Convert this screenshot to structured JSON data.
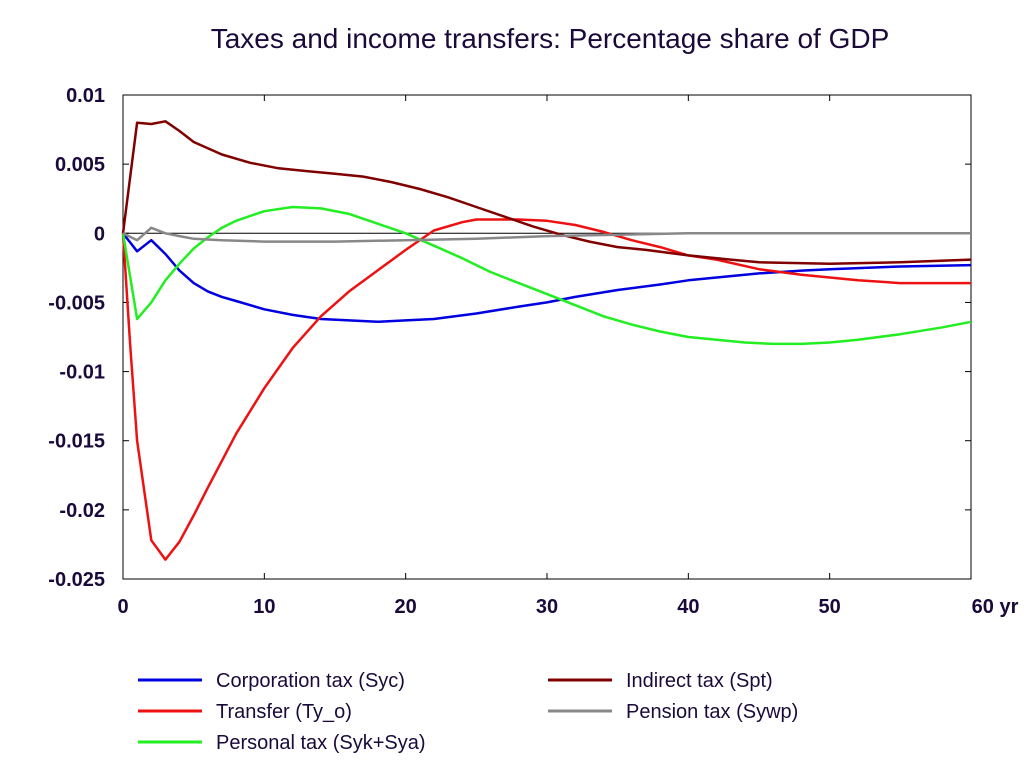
{
  "chart_data": {
    "type": "line",
    "title": "Taxes and income transfers: Percentage share of GDP",
    "xlabel": "",
    "ylabel": "",
    "x_unit_label": "yr",
    "xlim": [
      0,
      60
    ],
    "ylim": [
      -0.025,
      0.01
    ],
    "x_ticks": [
      0,
      10,
      20,
      30,
      40,
      50,
      60
    ],
    "x_tick_labels": [
      "0",
      "10",
      "20",
      "30",
      "40",
      "50",
      "60 yr"
    ],
    "y_ticks": [
      0.01,
      0.005,
      0,
      -0.005,
      -0.01,
      -0.015,
      -0.02,
      -0.025
    ],
    "y_tick_labels": [
      "0.01",
      "0.005",
      "0",
      "-0.005",
      "-0.01",
      "-0.015",
      "-0.02",
      "-0.025"
    ],
    "grid": false,
    "zero_line": true,
    "legend_position": "bottom",
    "series": [
      {
        "name": "Corporation tax (Syc)",
        "color": "#0000e0",
        "x": [
          0,
          1,
          2,
          3,
          4,
          5,
          6,
          7,
          8,
          10,
          12,
          14,
          16,
          18,
          20,
          22,
          25,
          28,
          30,
          32,
          35,
          38,
          40,
          42,
          45,
          48,
          50,
          55,
          60
        ],
        "values": [
          0,
          -0.0013,
          -0.0005,
          -0.0015,
          -0.0027,
          -0.0036,
          -0.0042,
          -0.0046,
          -0.0049,
          -0.0055,
          -0.0059,
          -0.0062,
          -0.0063,
          -0.0064,
          -0.0063,
          -0.0062,
          -0.0058,
          -0.0053,
          -0.005,
          -0.0046,
          -0.0041,
          -0.0037,
          -0.0034,
          -0.0032,
          -0.0029,
          -0.0027,
          -0.0026,
          -0.0024,
          -0.0023
        ]
      },
      {
        "name": "Transfer (Ty_o)",
        "color": "#ee1111",
        "x": [
          0,
          0.5,
          1,
          2,
          3,
          4,
          5,
          6,
          8,
          10,
          12,
          14,
          16,
          18,
          20,
          22,
          24,
          25,
          28,
          30,
          32,
          34,
          36,
          38,
          40,
          42,
          45,
          48,
          50,
          52,
          55,
          60
        ],
        "values": [
          0,
          -0.008,
          -0.015,
          -0.0222,
          -0.0236,
          -0.0223,
          -0.0204,
          -0.0184,
          -0.0145,
          -0.0112,
          -0.0083,
          -0.006,
          -0.0042,
          -0.0027,
          -0.0012,
          0.0002,
          0.0008,
          0.001,
          0.001,
          0.0009,
          0.0006,
          0.0001,
          -0.0005,
          -0.001,
          -0.0016,
          -0.0019,
          -0.0026,
          -0.003,
          -0.0032,
          -0.0034,
          -0.0036,
          -0.0036
        ]
      },
      {
        "name": "Personal tax (Syk+Sya)",
        "color": "#22ee22",
        "x": [
          0,
          1,
          2,
          3,
          4,
          5,
          6,
          7,
          8,
          10,
          12,
          14,
          16,
          18,
          20,
          22,
          24,
          26,
          28,
          30,
          32,
          34,
          36,
          38,
          40,
          42,
          44,
          46,
          48,
          50,
          52,
          55,
          58,
          60
        ],
        "values": [
          0,
          -0.0062,
          -0.005,
          -0.0034,
          -0.0022,
          -0.0011,
          -0.0003,
          0.0004,
          0.0009,
          0.0016,
          0.0019,
          0.0018,
          0.0014,
          0.0007,
          0,
          -0.0009,
          -0.0018,
          -0.0028,
          -0.0036,
          -0.0044,
          -0.0052,
          -0.006,
          -0.0066,
          -0.0071,
          -0.0075,
          -0.0077,
          -0.0079,
          -0.008,
          -0.008,
          -0.0079,
          -0.0077,
          -0.0073,
          -0.0068,
          -0.0064
        ]
      },
      {
        "name": "Indirect tax (Spt)",
        "color": "#800000",
        "x": [
          0,
          1,
          2,
          3,
          4,
          5,
          7,
          9,
          11,
          13,
          15,
          17,
          19,
          21,
          23,
          25,
          27,
          29,
          31,
          33,
          35,
          37,
          40,
          43,
          45,
          50,
          55,
          60
        ],
        "values": [
          0,
          0.008,
          0.0079,
          0.0081,
          0.0074,
          0.0066,
          0.0057,
          0.0051,
          0.0047,
          0.0045,
          0.0043,
          0.0041,
          0.0037,
          0.0032,
          0.0026,
          0.0019,
          0.0012,
          0.0005,
          -0.0001,
          -0.0006,
          -0.001,
          -0.0012,
          -0.0016,
          -0.0019,
          -0.0021,
          -0.0022,
          -0.0021,
          -0.0019
        ]
      },
      {
        "name": "Pension tax (Sywp)",
        "color": "#888888",
        "x": [
          0,
          1,
          2,
          3,
          4,
          5,
          7,
          10,
          15,
          20,
          25,
          30,
          35,
          40,
          50,
          60
        ],
        "values": [
          0,
          -0.0005,
          0.0004,
          0,
          -0.0002,
          -0.0004,
          -0.0005,
          -0.0006,
          -0.0006,
          -0.0005,
          -0.0004,
          -0.0002,
          -0.0001,
          0,
          0,
          0
        ]
      }
    ]
  }
}
